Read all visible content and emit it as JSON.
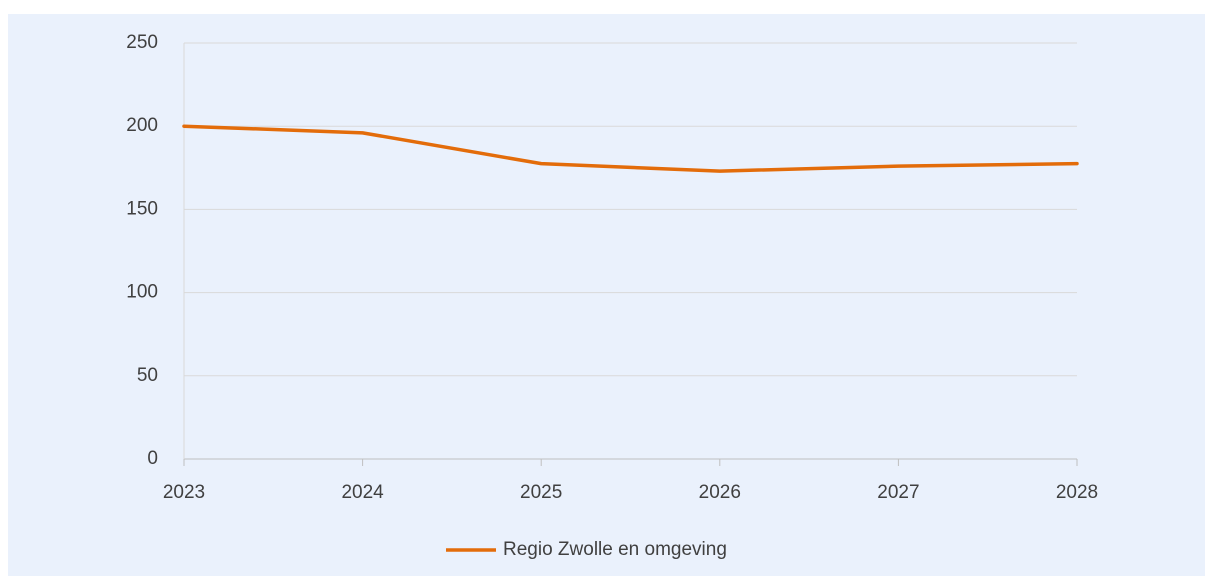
{
  "chart_data": {
    "type": "line",
    "categories": [
      "2023",
      "2024",
      "2025",
      "2026",
      "2027",
      "2028"
    ],
    "series": [
      {
        "name": "Regio Zwolle en omgeving",
        "color": "#e36c0a",
        "values": [
          200,
          196,
          177.5,
          173,
          176,
          177.5
        ]
      }
    ],
    "ylim": [
      0,
      250
    ],
    "yticks": [
      0,
      50,
      100,
      150,
      200,
      250
    ],
    "grid": true,
    "legend": "bottom"
  }
}
